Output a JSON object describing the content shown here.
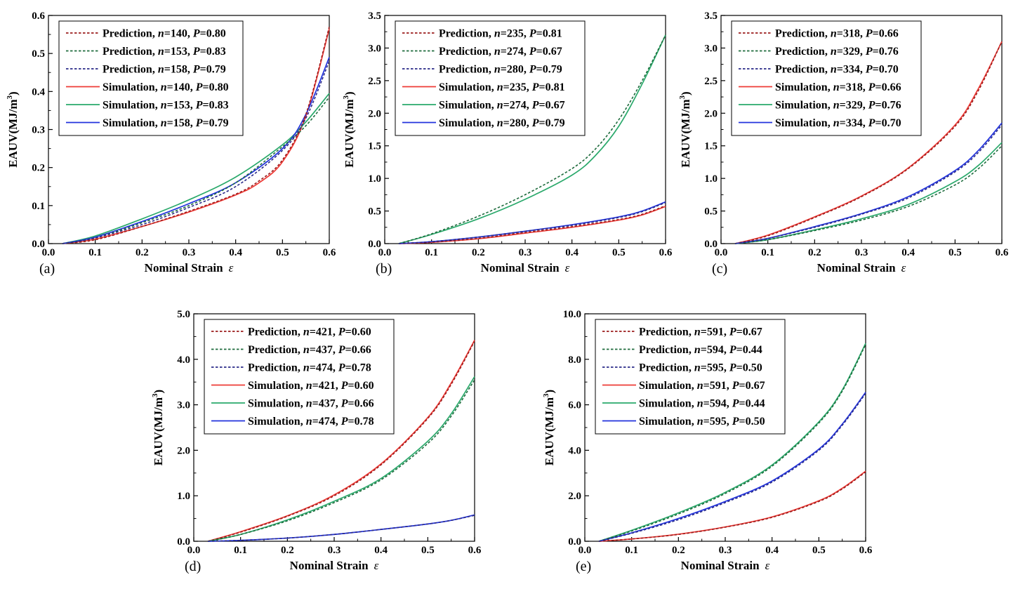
{
  "colors": {
    "red_solid": "#ee3b36",
    "green_solid": "#2aa96b",
    "blue_solid": "#2233dd",
    "red_dash": "#9b1c1c",
    "green_dash": "#1d6b3c",
    "blue_dash": "#2a2a88"
  },
  "chart_data": [
    {
      "type": "line",
      "panel_label": "(a)",
      "xlabel": "Nominal Strain",
      "xlabel_symbol": "ε",
      "ylabel": "EAUV(MJ/m",
      "ylabel_sup": "3",
      "ylabel_close": ")",
      "xlim": [
        0,
        0.6
      ],
      "ylim": [
        0,
        0.6
      ],
      "xticks": [
        "0.0",
        "0.1",
        "0.2",
        "0.3",
        "0.4",
        "0.5",
        "0.6"
      ],
      "yticks": [
        "0.0",
        "0.1",
        "0.2",
        "0.3",
        "0.4",
        "0.5",
        "0.6"
      ],
      "series": [
        {
          "kind": "Prediction",
          "n": "140",
          "P": "0.80",
          "style": "dash",
          "color": "#9b1c1c",
          "x": [
            0.03,
            0.1,
            0.2,
            0.3,
            0.4,
            0.45,
            0.5,
            0.55,
            0.6
          ],
          "y": [
            0,
            0.01,
            0.045,
            0.085,
            0.13,
            0.165,
            0.22,
            0.34,
            0.57
          ]
        },
        {
          "kind": "Prediction",
          "n": "153",
          "P": "0.83",
          "style": "dash",
          "color": "#1d6b3c",
          "x": [
            0.03,
            0.1,
            0.2,
            0.3,
            0.4,
            0.5,
            0.55,
            0.6
          ],
          "y": [
            0,
            0.015,
            0.055,
            0.1,
            0.16,
            0.255,
            0.31,
            0.385
          ]
        },
        {
          "kind": "Prediction",
          "n": "158",
          "P": "0.79",
          "style": "dash",
          "color": "#2a2a88",
          "x": [
            0.03,
            0.1,
            0.2,
            0.3,
            0.4,
            0.5,
            0.55,
            0.6
          ],
          "y": [
            0,
            0.015,
            0.05,
            0.095,
            0.15,
            0.245,
            0.33,
            0.48
          ]
        },
        {
          "kind": "Simulation",
          "n": "140",
          "P": "0.80",
          "style": "solid",
          "color": "#ee3b36",
          "x": [
            0.03,
            0.1,
            0.2,
            0.3,
            0.4,
            0.45,
            0.5,
            0.55,
            0.6
          ],
          "y": [
            0,
            0.012,
            0.045,
            0.083,
            0.128,
            0.16,
            0.215,
            0.335,
            0.565
          ]
        },
        {
          "kind": "Simulation",
          "n": "153",
          "P": "0.83",
          "style": "solid",
          "color": "#2aa96b",
          "x": [
            0.03,
            0.1,
            0.2,
            0.3,
            0.4,
            0.5,
            0.55,
            0.6
          ],
          "y": [
            0,
            0.02,
            0.065,
            0.115,
            0.175,
            0.26,
            0.32,
            0.395
          ]
        },
        {
          "kind": "Simulation",
          "n": "158",
          "P": "0.79",
          "style": "solid",
          "color": "#2233dd",
          "x": [
            0.03,
            0.1,
            0.2,
            0.3,
            0.4,
            0.5,
            0.55,
            0.6
          ],
          "y": [
            0,
            0.017,
            0.058,
            0.105,
            0.16,
            0.25,
            0.34,
            0.49
          ]
        }
      ]
    },
    {
      "type": "line",
      "panel_label": "(b)",
      "xlabel": "Nominal Strain",
      "xlabel_symbol": "ε",
      "ylabel": "EAUV(MJ/m",
      "ylabel_sup": "3",
      "ylabel_close": ")",
      "xlim": [
        0,
        0.6
      ],
      "ylim": [
        0,
        3.5
      ],
      "xticks": [
        "0.0",
        "0.1",
        "0.2",
        "0.3",
        "0.4",
        "0.5",
        "0.6"
      ],
      "yticks": [
        "0.0",
        "0.5",
        "1.0",
        "1.5",
        "2.0",
        "2.5",
        "3.0",
        "3.5"
      ],
      "series": [
        {
          "kind": "Prediction",
          "n": "235",
          "P": "0.81",
          "style": "dash",
          "color": "#9b1c1c",
          "x": [
            0.03,
            0.1,
            0.2,
            0.3,
            0.4,
            0.5,
            0.55,
            0.6
          ],
          "y": [
            0,
            0.02,
            0.08,
            0.17,
            0.26,
            0.37,
            0.45,
            0.58
          ]
        },
        {
          "kind": "Prediction",
          "n": "274",
          "P": "0.67",
          "style": "dash",
          "color": "#1d6b3c",
          "x": [
            0.03,
            0.1,
            0.2,
            0.3,
            0.4,
            0.45,
            0.5,
            0.55,
            0.6
          ],
          "y": [
            0,
            0.15,
            0.42,
            0.75,
            1.15,
            1.45,
            1.9,
            2.5,
            3.2
          ]
        },
        {
          "kind": "Prediction",
          "n": "280",
          "P": "0.79",
          "style": "dash",
          "color": "#2a2a88",
          "x": [
            0.03,
            0.1,
            0.2,
            0.3,
            0.4,
            0.5,
            0.55,
            0.6
          ],
          "y": [
            0,
            0.03,
            0.1,
            0.19,
            0.28,
            0.4,
            0.49,
            0.63
          ]
        },
        {
          "kind": "Simulation",
          "n": "235",
          "P": "0.81",
          "style": "solid",
          "color": "#ee3b36",
          "x": [
            0.03,
            0.1,
            0.2,
            0.3,
            0.4,
            0.5,
            0.55,
            0.6
          ],
          "y": [
            0,
            0.02,
            0.075,
            0.16,
            0.25,
            0.36,
            0.44,
            0.57
          ]
        },
        {
          "kind": "Simulation",
          "n": "274",
          "P": "0.67",
          "style": "solid",
          "color": "#2aa96b",
          "x": [
            0.03,
            0.1,
            0.2,
            0.3,
            0.4,
            0.45,
            0.5,
            0.55,
            0.6
          ],
          "y": [
            0,
            0.14,
            0.38,
            0.68,
            1.05,
            1.35,
            1.8,
            2.45,
            3.2
          ]
        },
        {
          "kind": "Simulation",
          "n": "280",
          "P": "0.79",
          "style": "solid",
          "color": "#2233dd",
          "x": [
            0.03,
            0.1,
            0.2,
            0.3,
            0.4,
            0.5,
            0.55,
            0.6
          ],
          "y": [
            0,
            0.03,
            0.1,
            0.19,
            0.29,
            0.41,
            0.5,
            0.64
          ]
        }
      ]
    },
    {
      "type": "line",
      "panel_label": "(c)",
      "xlabel": "Nominal Strain",
      "xlabel_symbol": "ε",
      "ylabel": "EAUV(MJ/m",
      "ylabel_sup": "3",
      "ylabel_close": ")",
      "xlim": [
        0,
        0.6
      ],
      "ylim": [
        0,
        3.5
      ],
      "xticks": [
        "0.0",
        "0.1",
        "0.2",
        "0.3",
        "0.4",
        "0.5",
        "0.6"
      ],
      "yticks": [
        "0.0",
        "0.5",
        "1.0",
        "1.5",
        "2.0",
        "2.5",
        "3.0",
        "3.5"
      ],
      "series": [
        {
          "kind": "Prediction",
          "n": "318",
          "P": "0.66",
          "style": "dash",
          "color": "#9b1c1c",
          "x": [
            0.03,
            0.1,
            0.2,
            0.3,
            0.4,
            0.5,
            0.55,
            0.6
          ],
          "y": [
            0,
            0.12,
            0.4,
            0.72,
            1.15,
            1.8,
            2.35,
            3.1
          ]
        },
        {
          "kind": "Prediction",
          "n": "329",
          "P": "0.76",
          "style": "dash",
          "color": "#1d6b3c",
          "x": [
            0.03,
            0.1,
            0.2,
            0.3,
            0.4,
            0.5,
            0.55,
            0.6
          ],
          "y": [
            0,
            0.06,
            0.2,
            0.36,
            0.57,
            0.9,
            1.15,
            1.5
          ]
        },
        {
          "kind": "Prediction",
          "n": "334",
          "P": "0.70",
          "style": "dash",
          "color": "#2a2a88",
          "x": [
            0.03,
            0.1,
            0.2,
            0.3,
            0.4,
            0.5,
            0.55,
            0.6
          ],
          "y": [
            0,
            0.08,
            0.25,
            0.45,
            0.7,
            1.1,
            1.4,
            1.82
          ]
        },
        {
          "kind": "Simulation",
          "n": "318",
          "P": "0.66",
          "style": "solid",
          "color": "#ee3b36",
          "x": [
            0.03,
            0.1,
            0.2,
            0.3,
            0.4,
            0.5,
            0.55,
            0.6
          ],
          "y": [
            0,
            0.13,
            0.41,
            0.73,
            1.16,
            1.82,
            2.38,
            3.1
          ]
        },
        {
          "kind": "Simulation",
          "n": "329",
          "P": "0.76",
          "style": "solid",
          "color": "#2aa96b",
          "x": [
            0.03,
            0.1,
            0.2,
            0.3,
            0.4,
            0.5,
            0.55,
            0.6
          ],
          "y": [
            0,
            0.06,
            0.21,
            0.38,
            0.6,
            0.95,
            1.2,
            1.55
          ]
        },
        {
          "kind": "Simulation",
          "n": "334",
          "P": "0.70",
          "style": "solid",
          "color": "#2233dd",
          "x": [
            0.03,
            0.1,
            0.2,
            0.3,
            0.4,
            0.5,
            0.55,
            0.6
          ],
          "y": [
            0,
            0.08,
            0.26,
            0.46,
            0.72,
            1.12,
            1.43,
            1.85
          ]
        }
      ]
    },
    {
      "type": "line",
      "panel_label": "(d)",
      "xlabel": "Nominal Strain",
      "xlabel_symbol": "ε",
      "ylabel": "EAUV(MJ/m",
      "ylabel_sup": "3",
      "ylabel_close": ")",
      "xlim": [
        0,
        0.6
      ],
      "ylim": [
        0,
        5.0
      ],
      "xticks": [
        "0.0",
        "0.1",
        "0.2",
        "0.3",
        "0.4",
        "0.5",
        "0.6"
      ],
      "yticks": [
        "0.0",
        "1.0",
        "2.0",
        "3.0",
        "4.0",
        "5.0"
      ],
      "series": [
        {
          "kind": "Prediction",
          "n": "421",
          "P": "0.60",
          "style": "dash",
          "color": "#9b1c1c",
          "x": [
            0.03,
            0.1,
            0.2,
            0.3,
            0.4,
            0.5,
            0.55,
            0.6
          ],
          "y": [
            0,
            0.2,
            0.55,
            1.0,
            1.68,
            2.7,
            3.45,
            4.4
          ]
        },
        {
          "kind": "Prediction",
          "n": "437",
          "P": "0.66",
          "style": "dash",
          "color": "#1d6b3c",
          "x": [
            0.03,
            0.1,
            0.2,
            0.3,
            0.4,
            0.5,
            0.55,
            0.6
          ],
          "y": [
            0,
            0.15,
            0.45,
            0.85,
            1.35,
            2.15,
            2.75,
            3.55
          ]
        },
        {
          "kind": "Prediction",
          "n": "474",
          "P": "0.78",
          "style": "dash",
          "color": "#2a2a88",
          "x": [
            0.03,
            0.1,
            0.2,
            0.3,
            0.4,
            0.5,
            0.55,
            0.6
          ],
          "y": [
            0,
            0.02,
            0.07,
            0.15,
            0.26,
            0.38,
            0.46,
            0.57
          ]
        },
        {
          "kind": "Simulation",
          "n": "421",
          "P": "0.60",
          "style": "solid",
          "color": "#ee3b36",
          "x": [
            0.03,
            0.1,
            0.2,
            0.3,
            0.4,
            0.5,
            0.55,
            0.6
          ],
          "y": [
            0,
            0.21,
            0.56,
            1.02,
            1.7,
            2.72,
            3.48,
            4.42
          ]
        },
        {
          "kind": "Simulation",
          "n": "437",
          "P": "0.66",
          "style": "solid",
          "color": "#2aa96b",
          "x": [
            0.03,
            0.1,
            0.2,
            0.3,
            0.4,
            0.5,
            0.55,
            0.6
          ],
          "y": [
            0,
            0.15,
            0.47,
            0.88,
            1.38,
            2.2,
            2.8,
            3.62
          ]
        },
        {
          "kind": "Simulation",
          "n": "474",
          "P": "0.78",
          "style": "solid",
          "color": "#2233dd",
          "x": [
            0.03,
            0.1,
            0.2,
            0.3,
            0.4,
            0.5,
            0.55,
            0.6
          ],
          "y": [
            0,
            0.02,
            0.07,
            0.15,
            0.26,
            0.38,
            0.46,
            0.58
          ]
        }
      ]
    },
    {
      "type": "line",
      "panel_label": "(e)",
      "xlabel": "Nominal Strain",
      "xlabel_symbol": "ε",
      "ylabel": "EAUV(MJ/m",
      "ylabel_sup": "3",
      "ylabel_close": ")",
      "xlim": [
        0,
        0.6
      ],
      "ylim": [
        0,
        10.0
      ],
      "xticks": [
        "0.0",
        "0.1",
        "0.2",
        "0.3",
        "0.4",
        "0.5",
        "0.6"
      ],
      "yticks": [
        "0.0",
        "2.0",
        "4.0",
        "6.0",
        "8.0",
        "10.0"
      ],
      "series": [
        {
          "kind": "Prediction",
          "n": "591",
          "P": "0.67",
          "style": "dash",
          "color": "#9b1c1c",
          "x": [
            0.03,
            0.1,
            0.2,
            0.3,
            0.4,
            0.5,
            0.55,
            0.6
          ],
          "y": [
            0,
            0.1,
            0.3,
            0.62,
            1.05,
            1.75,
            2.3,
            3.05
          ]
        },
        {
          "kind": "Prediction",
          "n": "594",
          "P": "0.44",
          "style": "dash",
          "color": "#1d6b3c",
          "x": [
            0.03,
            0.1,
            0.2,
            0.3,
            0.4,
            0.5,
            0.55,
            0.6
          ],
          "y": [
            0,
            0.45,
            1.2,
            2.1,
            3.3,
            5.2,
            6.6,
            8.65
          ]
        },
        {
          "kind": "Prediction",
          "n": "595",
          "P": "0.50",
          "style": "dash",
          "color": "#2a2a88",
          "x": [
            0.03,
            0.1,
            0.2,
            0.3,
            0.4,
            0.5,
            0.55,
            0.6
          ],
          "y": [
            0,
            0.35,
            0.95,
            1.7,
            2.6,
            4.0,
            5.1,
            6.5
          ]
        },
        {
          "kind": "Simulation",
          "n": "591",
          "P": "0.67",
          "style": "solid",
          "color": "#ee3b36",
          "x": [
            0.03,
            0.1,
            0.2,
            0.3,
            0.4,
            0.5,
            0.55,
            0.6
          ],
          "y": [
            0,
            0.1,
            0.31,
            0.63,
            1.07,
            1.78,
            2.33,
            3.08
          ]
        },
        {
          "kind": "Simulation",
          "n": "594",
          "P": "0.44",
          "style": "solid",
          "color": "#2aa96b",
          "x": [
            0.03,
            0.1,
            0.2,
            0.3,
            0.4,
            0.5,
            0.55,
            0.6
          ],
          "y": [
            0,
            0.48,
            1.25,
            2.15,
            3.35,
            5.25,
            6.65,
            8.7
          ]
        },
        {
          "kind": "Simulation",
          "n": "595",
          "P": "0.50",
          "style": "solid",
          "color": "#2233dd",
          "x": [
            0.03,
            0.1,
            0.2,
            0.3,
            0.4,
            0.5,
            0.55,
            0.6
          ],
          "y": [
            0,
            0.37,
            1.0,
            1.75,
            2.65,
            4.05,
            5.15,
            6.55
          ]
        }
      ]
    }
  ]
}
